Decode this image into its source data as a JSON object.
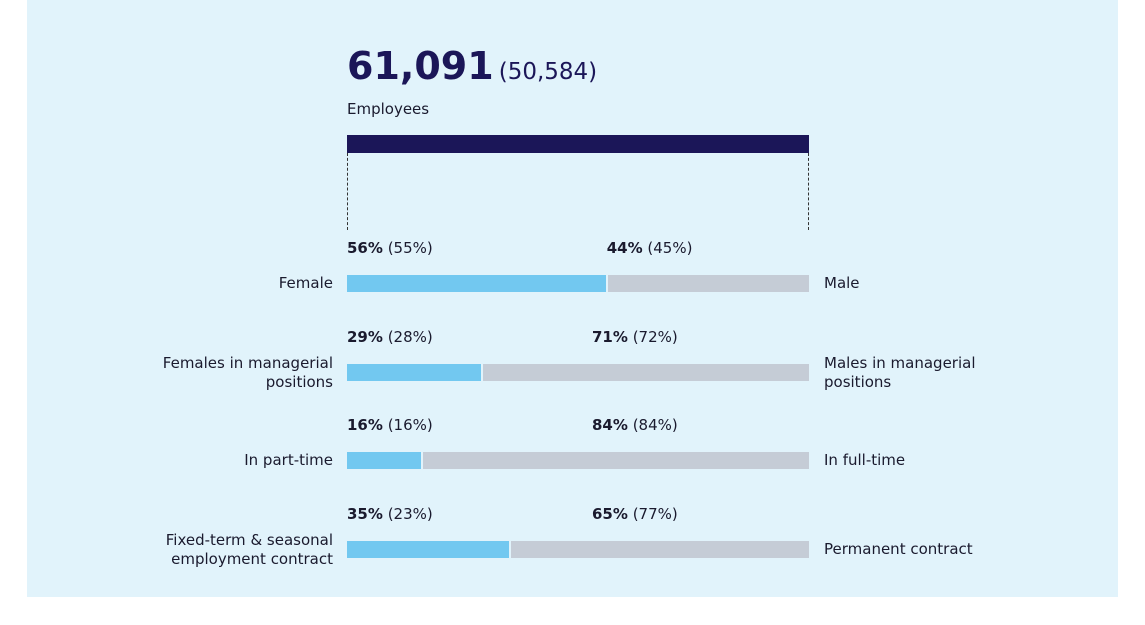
{
  "chart_data": {
    "type": "split_bar",
    "total": {
      "value": 61091,
      "label": "61,091"
    },
    "total_previous": {
      "value": 50584,
      "label": "(50,584)"
    },
    "total_name": "Employees",
    "total_color": "#1b1658",
    "xlim": [
      0,
      100
    ],
    "left_color": "#72c8f0",
    "right_color": "#c5ccd6",
    "rows": [
      {
        "left": {
          "name": "Female",
          "value": 56,
          "value_label": "56%",
          "previous": 55,
          "previous_label": "(55%)"
        },
        "right": {
          "name": "Male",
          "value": 44,
          "value_label": "44%",
          "previous": 45,
          "previous_label": "(45%)"
        }
      },
      {
        "left": {
          "name": "Females in managerial positions",
          "value": 29,
          "value_label": "29%",
          "previous": 28,
          "previous_label": "(28%)"
        },
        "right": {
          "name": "Males in managerial positions",
          "value": 71,
          "value_label": "71%",
          "previous": 72,
          "previous_label": "(72%)"
        }
      },
      {
        "left": {
          "name": "In part-time",
          "value": 16,
          "value_label": "16%",
          "previous": 16,
          "previous_label": "(16%)"
        },
        "right": {
          "name": "In full-time",
          "value": 84,
          "value_label": "84%",
          "previous": 84,
          "previous_label": "(84%)"
        }
      },
      {
        "left": {
          "name": "Fixed-term & seasonal employment contract",
          "value": 35,
          "value_label": "35%",
          "previous": 23,
          "previous_label": "(23%)"
        },
        "right": {
          "name": "Permanent contract",
          "value": 65,
          "value_label": "65%",
          "previous": 77,
          "previous_label": "(77%)"
        }
      }
    ]
  }
}
